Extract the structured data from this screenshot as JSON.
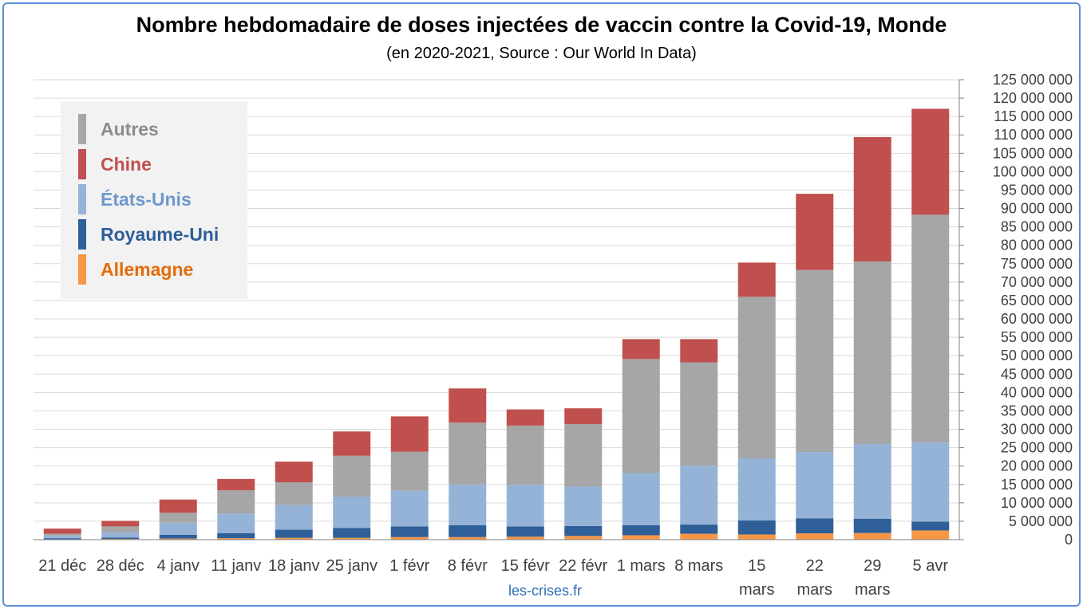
{
  "title": "Nombre hebdomadaire de doses injectées de vaccin contre la Covid-19, Monde",
  "subtitle": "(en 2020-2021, Source : Our World In Data)",
  "source_label": "les-crises.fr",
  "chart_data": {
    "type": "bar",
    "stacked": true,
    "title": "Nombre hebdomadaire de doses injectées de vaccin contre la Covid-19, Monde",
    "subtitle": "(en 2020-2021, Source : Our World In Data)",
    "categories": [
      "21 déc",
      "28 déc",
      "4 janv",
      "11 janv",
      "18 janv",
      "25 janv",
      "1 févr",
      "8 févr",
      "15 févr",
      "22 févr",
      "1 mars",
      "8 mars",
      "15 mars",
      "22 mars",
      "29 mars",
      "5 avr"
    ],
    "ylim": [
      0,
      125000000
    ],
    "y_ticks": [
      0,
      5000000,
      10000000,
      15000000,
      20000000,
      25000000,
      30000000,
      35000000,
      40000000,
      45000000,
      50000000,
      55000000,
      60000000,
      65000000,
      70000000,
      75000000,
      80000000,
      85000000,
      90000000,
      95000000,
      100000000,
      105000000,
      110000000,
      115000000,
      120000000,
      125000000
    ],
    "y_tick_labels": [
      "0",
      "5 000 000",
      "10 000 000",
      "15 000 000",
      "20 000 000",
      "25 000 000",
      "30 000 000",
      "35 000 000",
      "40 000 000",
      "45 000 000",
      "50 000 000",
      "55 000 000",
      "60 000 000",
      "65 000 000",
      "70 000 000",
      "75 000 000",
      "80 000 000",
      "85 000 000",
      "90 000 000",
      "95 000 000",
      "100 000 000",
      "105 000 000",
      "110 000 000",
      "115 000 000",
      "120 000 000",
      "125 000 000"
    ],
    "y_axis_side": "right",
    "grid": true,
    "legend_position": "top-left",
    "series": [
      {
        "name": "Allemagne",
        "color": "#f79646",
        "values": [
          100000,
          200000,
          300000,
          400000,
          500000,
          500000,
          700000,
          700000,
          800000,
          1000000,
          1200000,
          1600000,
          1400000,
          1700000,
          1800000,
          2500000
        ]
      },
      {
        "name": "Royaume-Uni",
        "color": "#2f5f98",
        "values": [
          300000,
          400000,
          1000000,
          1400000,
          2200000,
          2700000,
          2900000,
          3200000,
          2800000,
          2700000,
          2700000,
          2500000,
          3800000,
          4100000,
          3900000,
          2400000
        ]
      },
      {
        "name": "États-Unis",
        "color": "#95b3d7",
        "values": [
          700000,
          1400000,
          3300000,
          5300000,
          6700000,
          8400000,
          9700000,
          11100000,
          11300000,
          10700000,
          14200000,
          16000000,
          16900000,
          18000000,
          20300000,
          21500000
        ]
      },
      {
        "name": "Autres",
        "color": "#a6a6a6",
        "values": [
          500000,
          1600000,
          2700000,
          6300000,
          6200000,
          11200000,
          10600000,
          16800000,
          16100000,
          17000000,
          31000000,
          28100000,
          43900000,
          49500000,
          49600000,
          61900000
        ]
      },
      {
        "name": "Chine",
        "color": "#c0504d",
        "values": [
          1400000,
          1500000,
          3600000,
          3100000,
          5600000,
          6600000,
          9600000,
          9300000,
          4400000,
          4300000,
          5400000,
          6300000,
          9300000,
          20700000,
          33800000,
          28800000
        ]
      }
    ]
  },
  "legend": [
    {
      "label": "Autres",
      "color": "#a6a6a6",
      "text_color": "#8c8c8c"
    },
    {
      "label": "Chine",
      "color": "#c0504d",
      "text_color": "#c0504d"
    },
    {
      "label": "États-Unis",
      "color": "#95b3d7",
      "text_color": "#6f98cc"
    },
    {
      "label": "Royaume-Uni",
      "color": "#2f5f98",
      "text_color": "#2f5f98"
    },
    {
      "label": "Allemagne",
      "color": "#f79646",
      "text_color": "#e46c0a"
    }
  ]
}
